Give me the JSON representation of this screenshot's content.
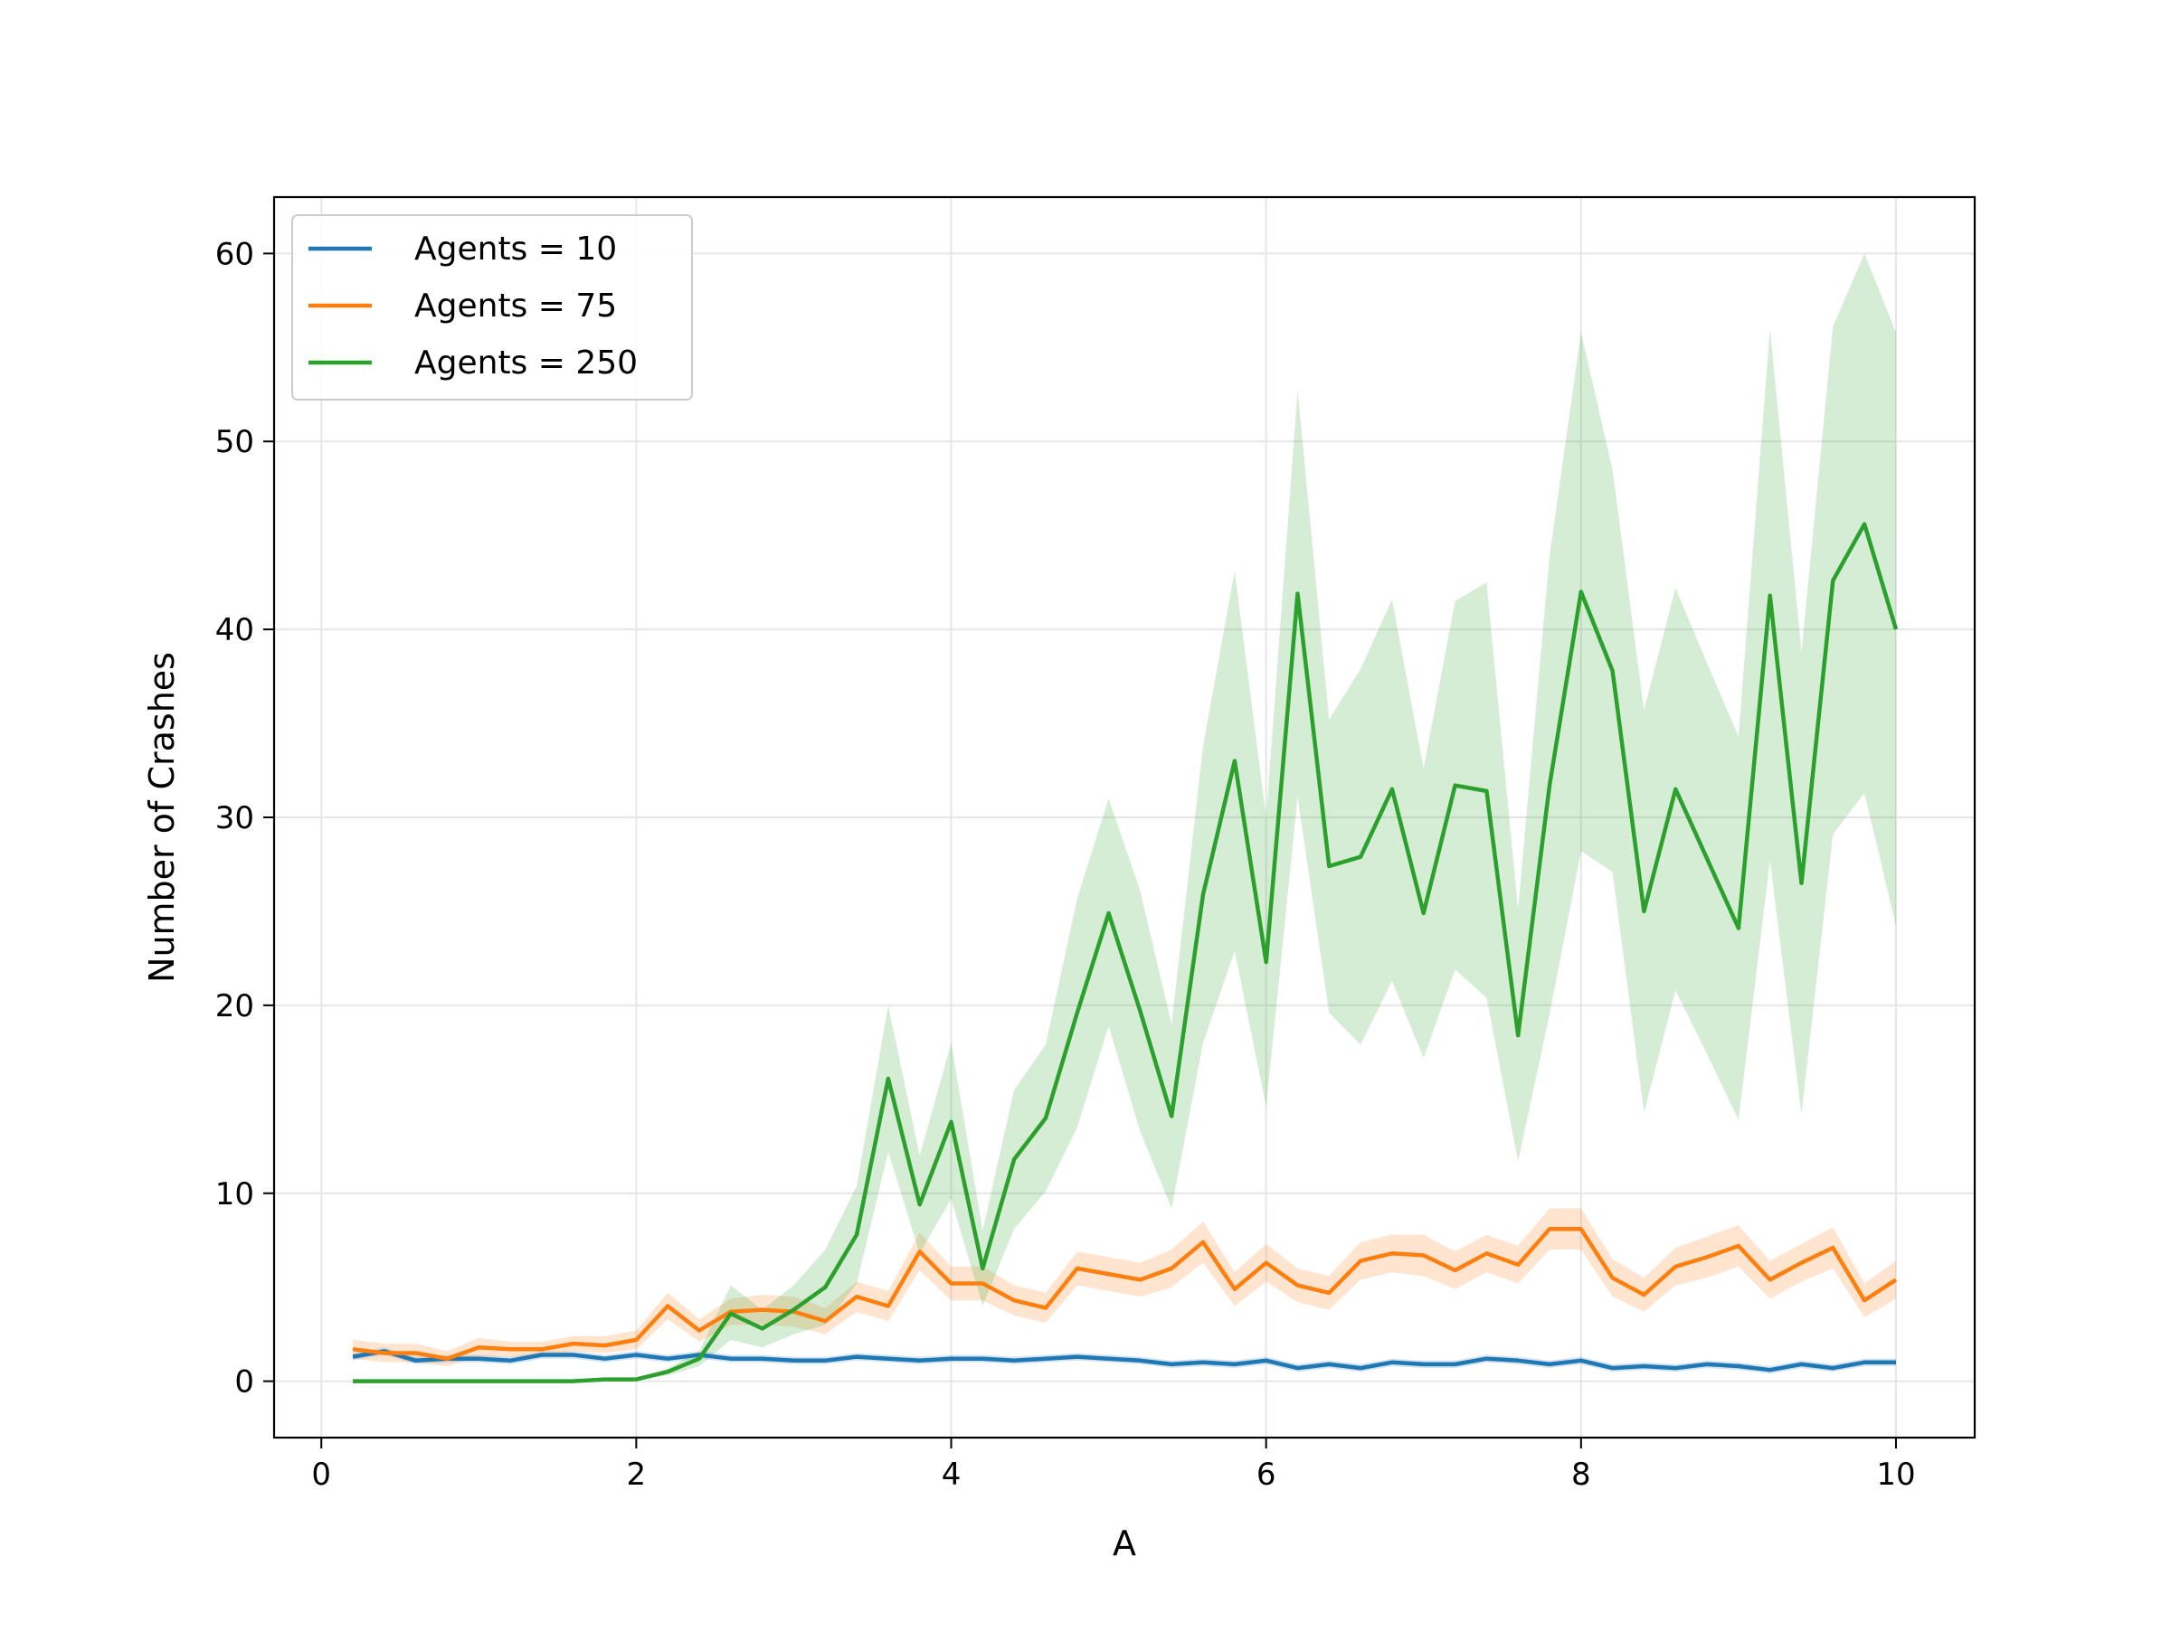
{
  "chart_data": {
    "type": "line",
    "title": "",
    "xlabel": "A",
    "ylabel": "Number of Crashes",
    "xlim": [
      -0.3,
      10.5
    ],
    "ylim": [
      -3,
      63
    ],
    "x_ticks": [
      0,
      2,
      4,
      6,
      8,
      10
    ],
    "y_ticks": [
      0,
      10,
      20,
      30,
      40,
      50,
      60
    ],
    "grid": true,
    "legend_position": "top-left",
    "x": [
      0.2,
      0.4,
      0.6,
      0.8,
      1.0,
      1.2,
      1.4,
      1.6,
      1.8,
      2.0,
      2.2,
      2.4,
      2.6,
      2.8,
      3.0,
      3.2,
      3.4,
      3.6,
      3.8,
      4.0,
      4.2,
      4.4,
      4.6,
      4.8,
      5.0,
      5.2,
      5.4,
      5.6,
      5.8,
      6.0,
      6.2,
      6.4,
      6.6,
      6.8,
      7.0,
      7.2,
      7.4,
      7.6,
      7.8,
      8.0,
      8.2,
      8.4,
      8.6,
      8.8,
      9.0,
      9.2,
      9.4,
      9.6,
      9.8,
      10.0
    ],
    "series": [
      {
        "name": "Agents = 10",
        "color": "#1f77b4",
        "values": [
          1.3,
          1.6,
          1.1,
          1.2,
          1.2,
          1.1,
          1.4,
          1.4,
          1.2,
          1.4,
          1.2,
          1.4,
          1.2,
          1.2,
          1.1,
          1.1,
          1.3,
          1.2,
          1.1,
          1.2,
          1.2,
          1.1,
          1.2,
          1.3,
          1.2,
          1.1,
          0.9,
          1.0,
          0.9,
          1.1,
          0.7,
          0.9,
          0.7,
          1.0,
          0.9,
          0.9,
          1.2,
          1.1,
          0.9,
          1.1,
          0.7,
          0.8,
          0.7,
          0.9,
          0.8,
          0.6,
          0.9,
          0.7,
          1.0,
          1.0
        ],
        "lower": [
          1.1,
          1.4,
          0.9,
          1.0,
          1.0,
          0.9,
          1.2,
          1.2,
          1.0,
          1.2,
          1.0,
          1.2,
          1.0,
          1.0,
          0.9,
          0.9,
          1.1,
          1.0,
          0.9,
          1.0,
          1.0,
          0.9,
          1.0,
          1.1,
          1.0,
          0.9,
          0.7,
          0.8,
          0.7,
          0.9,
          0.5,
          0.7,
          0.5,
          0.8,
          0.7,
          0.7,
          1.0,
          0.9,
          0.7,
          0.9,
          0.5,
          0.6,
          0.5,
          0.7,
          0.6,
          0.4,
          0.7,
          0.5,
          0.8,
          0.8
        ],
        "upper": [
          1.5,
          1.8,
          1.3,
          1.4,
          1.4,
          1.3,
          1.6,
          1.6,
          1.4,
          1.6,
          1.4,
          1.6,
          1.4,
          1.4,
          1.3,
          1.3,
          1.5,
          1.4,
          1.3,
          1.4,
          1.4,
          1.3,
          1.4,
          1.5,
          1.4,
          1.3,
          1.1,
          1.2,
          1.1,
          1.3,
          0.9,
          1.1,
          0.9,
          1.2,
          1.1,
          1.1,
          1.4,
          1.3,
          1.1,
          1.3,
          0.9,
          1.0,
          0.9,
          1.1,
          1.0,
          0.8,
          1.1,
          0.9,
          1.2,
          1.2
        ]
      },
      {
        "name": "Agents = 75",
        "color": "#ff7f0e",
        "values": [
          1.7,
          1.5,
          1.5,
          1.2,
          1.8,
          1.7,
          1.7,
          2.0,
          1.9,
          2.2,
          4.0,
          2.7,
          3.7,
          3.8,
          3.7,
          3.2,
          4.5,
          4.0,
          6.9,
          5.2,
          5.2,
          4.3,
          3.9,
          6.0,
          5.7,
          5.4,
          6.0,
          7.4,
          4.9,
          6.3,
          5.1,
          4.7,
          6.4,
          6.8,
          6.7,
          5.9,
          6.8,
          6.2,
          8.1,
          8.1,
          5.5,
          4.6,
          6.1,
          6.6,
          7.2,
          5.4,
          6.3,
          7.1,
          4.3,
          5.4
        ],
        "lower": [
          1.2,
          1.0,
          1.0,
          0.8,
          1.3,
          1.3,
          1.3,
          1.6,
          1.5,
          1.7,
          3.3,
          2.1,
          3.0,
          3.0,
          2.9,
          2.5,
          3.7,
          3.2,
          5.9,
          4.3,
          4.3,
          3.5,
          3.1,
          5.1,
          4.8,
          4.5,
          5.0,
          6.3,
          4.0,
          5.3,
          4.2,
          3.8,
          5.4,
          5.8,
          5.6,
          4.9,
          5.8,
          5.2,
          7.0,
          7.0,
          4.5,
          3.7,
          5.1,
          5.5,
          6.1,
          4.4,
          5.3,
          6.0,
          3.4,
          4.4
        ],
        "upper": [
          2.2,
          2.0,
          2.0,
          1.6,
          2.3,
          2.1,
          2.1,
          2.4,
          2.4,
          2.7,
          4.7,
          3.3,
          4.4,
          4.6,
          4.5,
          3.9,
          5.3,
          4.8,
          7.9,
          6.1,
          6.1,
          5.1,
          4.7,
          6.9,
          6.6,
          6.3,
          7.0,
          8.5,
          5.8,
          7.3,
          6.0,
          5.6,
          7.4,
          7.8,
          7.8,
          6.9,
          7.8,
          7.2,
          9.2,
          9.2,
          6.5,
          5.5,
          7.1,
          7.7,
          8.3,
          6.4,
          7.3,
          8.2,
          5.2,
          6.4
        ]
      },
      {
        "name": "Agents = 250",
        "color": "#2ca02c",
        "values": [
          0.0,
          0.0,
          0.0,
          0.0,
          0.0,
          0.0,
          0.0,
          0.0,
          0.1,
          0.1,
          0.5,
          1.2,
          3.6,
          2.8,
          3.8,
          5.0,
          7.8,
          16.1,
          9.4,
          13.8,
          6.0,
          11.8,
          14.0,
          19.6,
          24.9,
          19.7,
          14.1,
          25.9,
          33.0,
          22.3,
          41.9,
          27.4,
          27.9,
          31.5,
          24.9,
          31.7,
          31.4,
          18.4,
          31.7,
          42.0,
          37.8,
          25.0,
          31.5,
          27.8,
          24.1,
          41.8,
          26.5,
          42.6,
          45.6,
          40.0
        ],
        "lower": [
          0.0,
          0.0,
          0.0,
          0.0,
          0.0,
          0.0,
          0.0,
          0.0,
          0.1,
          0.1,
          0.3,
          0.8,
          2.2,
          1.8,
          2.5,
          3.0,
          5.2,
          12.2,
          6.8,
          9.7,
          4.0,
          8.1,
          10.1,
          13.5,
          18.9,
          13.3,
          9.2,
          18.0,
          22.9,
          14.6,
          31.1,
          19.6,
          17.9,
          21.3,
          17.2,
          21.9,
          20.4,
          11.7,
          19.5,
          28.2,
          27.1,
          14.3,
          20.8,
          17.4,
          13.9,
          27.7,
          14.2,
          29.1,
          31.3,
          24.2
        ],
        "upper": [
          0.0,
          0.0,
          0.0,
          0.0,
          0.0,
          0.0,
          0.0,
          0.0,
          0.1,
          0.1,
          0.7,
          1.6,
          5.1,
          3.8,
          5.1,
          7.0,
          10.4,
          20.0,
          12.0,
          18.0,
          8.0,
          15.5,
          17.9,
          25.7,
          31.0,
          26.1,
          19.0,
          33.8,
          43.1,
          30.0,
          52.7,
          35.2,
          37.9,
          41.6,
          32.6,
          41.5,
          42.5,
          25.1,
          43.9,
          55.8,
          48.5,
          35.7,
          42.2,
          38.2,
          34.3,
          56.0,
          38.8,
          56.1,
          60.0,
          55.8
        ]
      }
    ]
  }
}
